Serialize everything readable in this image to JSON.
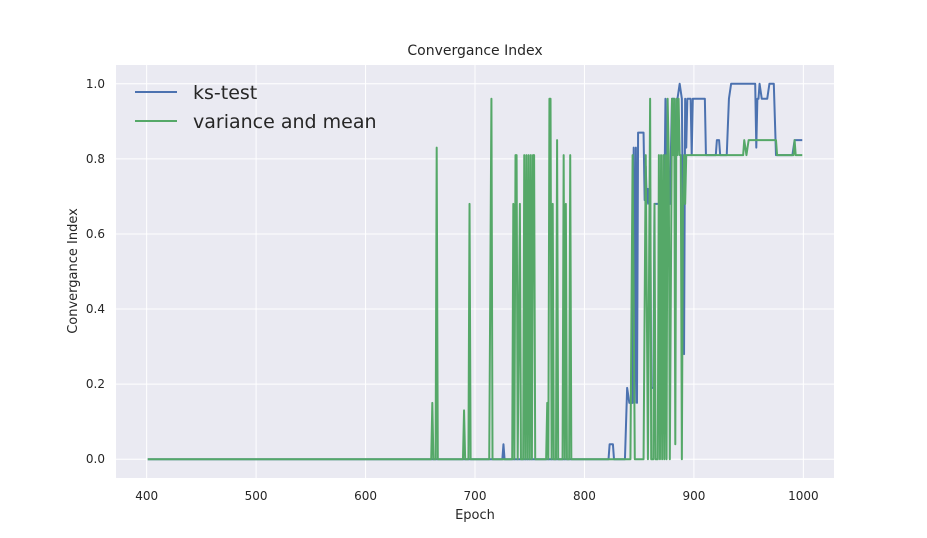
{
  "chart_data": {
    "type": "line",
    "title": "Convergance Index",
    "xlabel": "Epoch",
    "ylabel": "Convergance Index",
    "xlim": [
      372,
      1028
    ],
    "ylim": [
      -0.05,
      1.05
    ],
    "xticks": [
      400,
      500,
      600,
      700,
      800,
      900,
      1000
    ],
    "yticks": [
      0.0,
      0.2,
      0.4,
      0.6,
      0.8,
      1.0
    ],
    "xtick_labels": [
      "400",
      "500",
      "600",
      "700",
      "800",
      "900",
      "1000"
    ],
    "ytick_labels": [
      "0.0",
      "0.2",
      "0.4",
      "0.6",
      "0.8",
      "1.0"
    ],
    "grid": true,
    "legend_position": "top-left",
    "background": "#eaeaf2",
    "series": [
      {
        "name": "ks-test",
        "color": "#4c72b0",
        "points": [
          [
            401,
            0.0
          ],
          [
            725,
            0.0
          ],
          [
            726,
            0.04
          ],
          [
            727,
            0.0
          ],
          [
            822,
            0.0
          ],
          [
            823,
            0.04
          ],
          [
            826,
            0.04
          ],
          [
            827,
            0.0
          ],
          [
            837,
            0.0
          ],
          [
            839,
            0.19
          ],
          [
            841,
            0.15
          ],
          [
            844,
            0.15
          ],
          [
            845,
            0.83
          ],
          [
            846,
            0.15
          ],
          [
            847,
            0.83
          ],
          [
            848,
            0.15
          ],
          [
            849,
            0.87
          ],
          [
            854,
            0.87
          ],
          [
            855,
            0.69
          ],
          [
            856,
            0.78
          ],
          [
            857,
            0.68
          ],
          [
            858,
            0.72
          ],
          [
            859,
            0.68
          ],
          [
            860,
            0.72
          ],
          [
            861,
            0.19
          ],
          [
            863,
            0.19
          ],
          [
            864,
            0.68
          ],
          [
            873,
            0.68
          ],
          [
            874,
            0.96
          ],
          [
            876,
            0.68
          ],
          [
            878,
            0.68
          ],
          [
            880,
            0.96
          ],
          [
            882,
            0.96
          ],
          [
            883,
            0.79
          ],
          [
            885,
            0.96
          ],
          [
            887,
            1.0
          ],
          [
            889,
            0.96
          ],
          [
            891,
            0.28
          ],
          [
            892,
            0.96
          ],
          [
            893,
            0.83
          ],
          [
            894,
            0.96
          ],
          [
            897,
            0.96
          ],
          [
            898,
            0.81
          ],
          [
            899,
            0.96
          ],
          [
            910,
            0.96
          ],
          [
            911,
            0.81
          ],
          [
            920,
            0.81
          ],
          [
            921,
            0.85
          ],
          [
            923,
            0.85
          ],
          [
            924,
            0.81
          ],
          [
            930,
            0.81
          ],
          [
            932,
            0.96
          ],
          [
            934,
            1.0
          ],
          [
            956,
            1.0
          ],
          [
            957,
            0.83
          ],
          [
            958,
            0.96
          ],
          [
            959,
            0.96
          ],
          [
            960,
            1.0
          ],
          [
            962,
            0.96
          ],
          [
            967,
            0.96
          ],
          [
            969,
            1.0
          ],
          [
            973,
            1.0
          ],
          [
            975,
            0.81
          ],
          [
            990,
            0.81
          ],
          [
            992,
            0.85
          ],
          [
            999,
            0.85
          ]
        ]
      },
      {
        "name": "variance and mean",
        "color": "#55a868",
        "points": [
          [
            401,
            0.0
          ],
          [
            660,
            0.0
          ],
          [
            661,
            0.15
          ],
          [
            662,
            0.0
          ],
          [
            664,
            0.0
          ],
          [
            665,
            0.83
          ],
          [
            666,
            0.0
          ],
          [
            689,
            0.0
          ],
          [
            690,
            0.13
          ],
          [
            691,
            0.0
          ],
          [
            694,
            0.0
          ],
          [
            695,
            0.68
          ],
          [
            696,
            0.0
          ],
          [
            713,
            0.0
          ],
          [
            715,
            0.96
          ],
          [
            716,
            0.0
          ],
          [
            734,
            0.0
          ],
          [
            735,
            0.68
          ],
          [
            736,
            0.0
          ],
          [
            737,
            0.81
          ],
          [
            738,
            0.81
          ],
          [
            739,
            0.0
          ],
          [
            741,
            0.68
          ],
          [
            742,
            0.0
          ],
          [
            744,
            0.0
          ],
          [
            745,
            0.81
          ],
          [
            746,
            0.0
          ],
          [
            747,
            0.81
          ],
          [
            748,
            0.0
          ],
          [
            749,
            0.81
          ],
          [
            750,
            0.0
          ],
          [
            751,
            0.81
          ],
          [
            752,
            0.0
          ],
          [
            753,
            0.81
          ],
          [
            754,
            0.81
          ],
          [
            755,
            0.0
          ],
          [
            765,
            0.0
          ],
          [
            766,
            0.15
          ],
          [
            767,
            0.0
          ],
          [
            768,
            0.96
          ],
          [
            769,
            0.96
          ],
          [
            770,
            0.0
          ],
          [
            771,
            0.68
          ],
          [
            772,
            0.0
          ],
          [
            774,
            0.0
          ],
          [
            775,
            0.85
          ],
          [
            776,
            0.0
          ],
          [
            780,
            0.0
          ],
          [
            781,
            0.81
          ],
          [
            782,
            0.0
          ],
          [
            783,
            0.68
          ],
          [
            784,
            0.0
          ],
          [
            786,
            0.0
          ],
          [
            787,
            0.81
          ],
          [
            788,
            0.0
          ],
          [
            820,
            0.0
          ],
          [
            837,
            0.0
          ],
          [
            838,
            0.0
          ],
          [
            840,
            0.0
          ],
          [
            841,
            0.0
          ],
          [
            842,
            0.0
          ],
          [
            844,
            0.81
          ],
          [
            846,
            0.0
          ],
          [
            850,
            0.0
          ],
          [
            852,
            0.0
          ],
          [
            854,
            0.0
          ],
          [
            856,
            0.81
          ],
          [
            858,
            0.0
          ],
          [
            860,
            0.96
          ],
          [
            861,
            0.0
          ],
          [
            863,
            0.0
          ],
          [
            864,
            0.68
          ],
          [
            865,
            0.0
          ],
          [
            867,
            0.0
          ],
          [
            868,
            0.81
          ],
          [
            869,
            0.0
          ],
          [
            870,
            0.81
          ],
          [
            871,
            0.0
          ],
          [
            872,
            0.81
          ],
          [
            873,
            0.0
          ],
          [
            874,
            0.81
          ],
          [
            875,
            0.0
          ],
          [
            876,
            0.96
          ],
          [
            877,
            0.81
          ],
          [
            878,
            0.0
          ],
          [
            880,
            0.96
          ],
          [
            881,
            0.81
          ],
          [
            882,
            0.96
          ],
          [
            883,
            0.04
          ],
          [
            884,
            0.96
          ],
          [
            885,
            0.81
          ],
          [
            886,
            0.96
          ],
          [
            887,
            0.81
          ],
          [
            888,
            0.81
          ],
          [
            889,
            0.0
          ],
          [
            890,
            0.68
          ],
          [
            891,
            0.81
          ],
          [
            892,
            0.68
          ],
          [
            893,
            0.81
          ],
          [
            945,
            0.81
          ],
          [
            946,
            0.85
          ],
          [
            948,
            0.81
          ],
          [
            950,
            0.85
          ],
          [
            975,
            0.85
          ],
          [
            976,
            0.81
          ],
          [
            991,
            0.81
          ],
          [
            992,
            0.85
          ],
          [
            993,
            0.81
          ],
          [
            999,
            0.81
          ]
        ]
      }
    ]
  }
}
